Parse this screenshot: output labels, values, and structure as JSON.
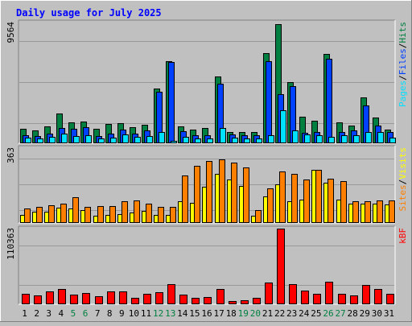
{
  "title": "Daily usage for July 2025",
  "colors": {
    "title": "#0000ff",
    "hits": "#008040",
    "files": "#0040ff",
    "pages": "#00e0ff",
    "visits": "#ffff00",
    "sites": "#ff8000",
    "kbytes": "#ff0000",
    "weekend": "#008040",
    "weekday": "#000000",
    "panel": "#c0c0c0",
    "grid": "#999999"
  },
  "chart_data": [
    {
      "type": "bar",
      "name": "hits-files-pages",
      "ymax_label": "9564",
      "ymax": 9564,
      "legend": [
        "Pages",
        "/",
        "Files",
        "/",
        "Hits"
      ],
      "categories": [
        "1",
        "2",
        "3",
        "4",
        "5",
        "6",
        "7",
        "8",
        "9",
        "10",
        "11",
        "12",
        "13",
        "14",
        "15",
        "16",
        "17",
        "18",
        "19",
        "20",
        "21",
        "22",
        "23",
        "24",
        "25",
        "26",
        "27",
        "28",
        "29",
        "30",
        "31"
      ],
      "series": [
        {
          "name": "Hits",
          "values": [
            1100,
            950,
            1300,
            2300,
            1600,
            1650,
            1100,
            1450,
            1550,
            1200,
            1400,
            4250,
            6450,
            1300,
            1050,
            1150,
            5200,
            850,
            800,
            850,
            7100,
            9350,
            4800,
            2050,
            1700,
            7000,
            1600,
            1350,
            3600,
            2000,
            1000
          ]
        },
        {
          "name": "Files",
          "values": [
            600,
            500,
            700,
            1150,
            1100,
            1200,
            500,
            700,
            1000,
            700,
            950,
            4000,
            6350,
            900,
            600,
            600,
            4650,
            650,
            550,
            550,
            6450,
            3850,
            4450,
            750,
            800,
            6650,
            800,
            950,
            2950,
            1350,
            800
          ]
        },
        {
          "name": "Pages",
          "values": [
            400,
            300,
            450,
            700,
            500,
            550,
            300,
            400,
            650,
            450,
            500,
            850,
            150,
            450,
            300,
            350,
            1150,
            400,
            350,
            300,
            550,
            2550,
            950,
            650,
            550,
            450,
            550,
            600,
            800,
            800,
            400
          ]
        }
      ]
    },
    {
      "type": "bar",
      "name": "visits-sites",
      "ymax_label": "363",
      "ymax": 363,
      "legend": [
        "Sites",
        "/",
        "Visits"
      ],
      "categories": [
        "1",
        "2",
        "3",
        "4",
        "5",
        "6",
        "7",
        "8",
        "9",
        "10",
        "11",
        "12",
        "13",
        "14",
        "15",
        "16",
        "17",
        "18",
        "19",
        "20",
        "21",
        "22",
        "23",
        "24",
        "25",
        "26",
        "27",
        "28",
        "29",
        "30",
        "31"
      ],
      "series": [
        {
          "name": "Visits",
          "values": [
            35,
            50,
            52,
            70,
            65,
            60,
            30,
            35,
            40,
            45,
            55,
            35,
            35,
            100,
            95,
            170,
            235,
            205,
            175,
            30,
            125,
            185,
            100,
            110,
            255,
            190,
            110,
            90,
            90,
            90,
            85
          ]
        },
        {
          "name": "Sites",
          "values": [
            65,
            75,
            82,
            88,
            120,
            75,
            78,
            80,
            100,
            105,
            90,
            75,
            75,
            225,
            275,
            295,
            305,
            290,
            265,
            60,
            165,
            245,
            235,
            205,
            255,
            210,
            200,
            100,
            100,
            105,
            105
          ]
        }
      ]
    },
    {
      "type": "bar",
      "name": "kbytes",
      "ymax_label": "110363",
      "ymax": 110363,
      "legend": [
        "kB",
        "F"
      ],
      "categories": [
        "1",
        "2",
        "3",
        "4",
        "5",
        "6",
        "7",
        "8",
        "9",
        "10",
        "11",
        "12",
        "13",
        "14",
        "15",
        "16",
        "17",
        "18",
        "19",
        "20",
        "21",
        "22",
        "23",
        "24",
        "25",
        "26",
        "27",
        "28",
        "29",
        "30",
        "31"
      ],
      "series": [
        {
          "name": "kB F",
          "values": [
            14500,
            12000,
            18000,
            21000,
            12500,
            15500,
            10500,
            17500,
            17500,
            8500,
            14000,
            17000,
            28000,
            12500,
            8500,
            9000,
            21500,
            4000,
            5000,
            8000,
            30500,
            109500,
            28000,
            19000,
            14000,
            32000,
            14500,
            11500,
            27500,
            21000,
            14000
          ]
        }
      ]
    }
  ],
  "weekends": [
    5,
    6,
    12,
    13,
    19,
    20,
    26,
    27
  ]
}
